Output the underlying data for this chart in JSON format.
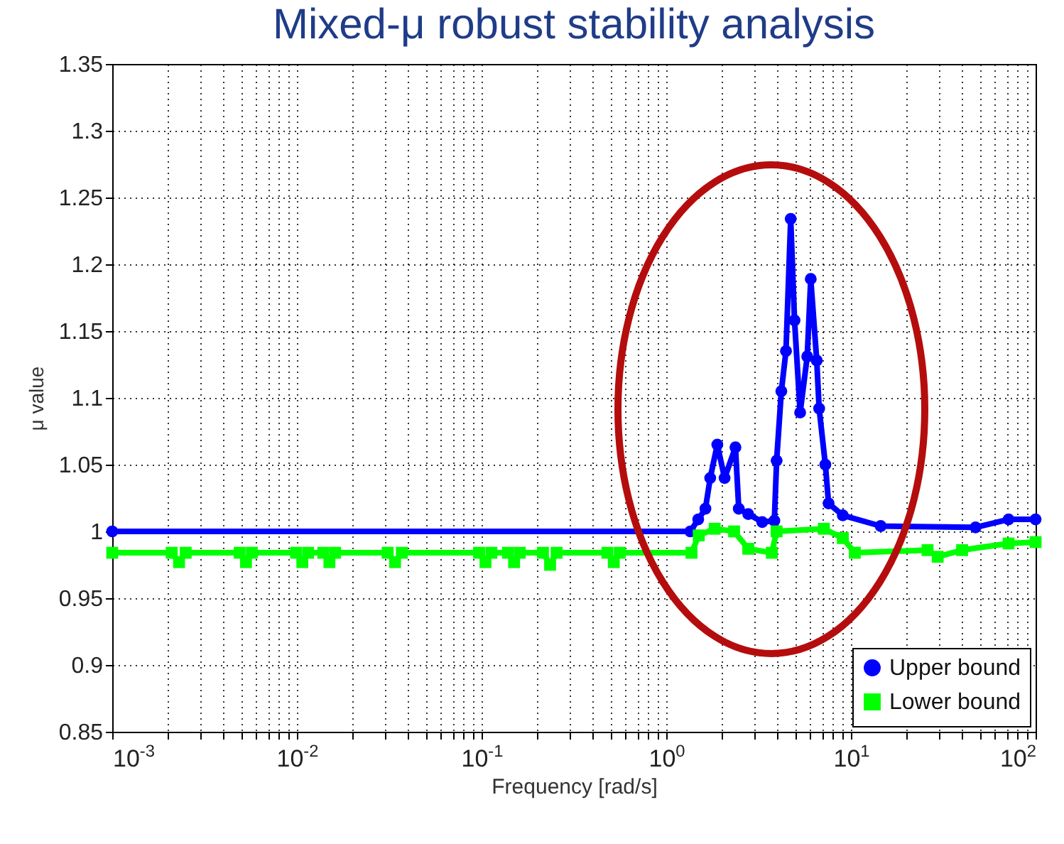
{
  "chart_data": {
    "type": "line",
    "title": "Mixed-μ robust stability analysis",
    "xlabel": "Frequency [rad/s]",
    "ylabel": "μ value",
    "log": "x",
    "grid": true,
    "legend": "bottom right",
    "xlim": [
      0.001,
      100
    ],
    "ylim": [
      0.85,
      1.35
    ],
    "xticks": [
      {
        "value": 0.001,
        "label": "10$^{-3}$"
      },
      {
        "value": 0.002,
        "label": null
      },
      {
        "value": 0.003,
        "label": null
      },
      {
        "value": 0.004,
        "label": null
      },
      {
        "value": 0.005,
        "label": null
      },
      {
        "value": 0.006,
        "label": null
      },
      {
        "value": 0.007,
        "label": null
      },
      {
        "value": 0.008,
        "label": null
      },
      {
        "value": 0.009,
        "label": null
      },
      {
        "value": 0.01,
        "label": "10$^{-2}$"
      },
      {
        "value": 0.02,
        "label": null
      },
      {
        "value": 0.03,
        "label": null
      },
      {
        "value": 0.04,
        "label": null
      },
      {
        "value": 0.05,
        "label": null
      },
      {
        "value": 0.06,
        "label": null
      },
      {
        "value": 0.07,
        "label": null
      },
      {
        "value": 0.08,
        "label": null
      },
      {
        "value": 0.09,
        "label": null
      },
      {
        "value": 0.1,
        "label": "10$^{-1}$"
      },
      {
        "value": 0.2,
        "label": null
      },
      {
        "value": 0.3,
        "label": null
      },
      {
        "value": 0.4,
        "label": null
      },
      {
        "value": 0.5,
        "label": null
      },
      {
        "value": 0.6,
        "label": null
      },
      {
        "value": 0.7,
        "label": null
      },
      {
        "value": 0.8,
        "label": null
      },
      {
        "value": 0.9,
        "label": null
      },
      {
        "value": 1,
        "label": "10$^{0}$"
      },
      {
        "value": 2,
        "label": null
      },
      {
        "value": 3,
        "label": null
      },
      {
        "value": 4,
        "label": null
      },
      {
        "value": 5,
        "label": null
      },
      {
        "value": 6,
        "label": null
      },
      {
        "value": 7,
        "label": null
      },
      {
        "value": 8,
        "label": null
      },
      {
        "value": 9,
        "label": null
      },
      {
        "value": 10,
        "label": "10$^{1}$"
      },
      {
        "value": 20,
        "label": null
      },
      {
        "value": 30,
        "label": null
      },
      {
        "value": 40,
        "label": null
      },
      {
        "value": 50,
        "label": null
      },
      {
        "value": 60,
        "label": null
      },
      {
        "value": 70,
        "label": null
      },
      {
        "value": 80,
        "label": null
      },
      {
        "value": 90,
        "label": null
      },
      {
        "value": 100,
        "label": "10$^{2}$"
      }
    ],
    "yticks": [
      0.85,
      0.9,
      0.95,
      1,
      1.05,
      1.1,
      1.15,
      1.2,
      1.25,
      1.3,
      1.35
    ],
    "marker": "circle",
    "series": [
      {
        "name": "Upper bound",
        "color": "#0000ff",
        "marker": "circle",
        "x": [
          0.001,
          1.35,
          1.49,
          1.63,
          1.73,
          1.89,
          2.07,
          2.37,
          2.47,
          2.78,
          3.31,
          3.85,
          3.96,
          4.2,
          4.45,
          4.72,
          4.95,
          5.31,
          5.8,
          6.06,
          6.53,
          6.73,
          7.27,
          7.57,
          9.04,
          14.5,
          47.3,
          71.4,
          100
        ],
        "values": [
          1.0,
          1.0,
          1.009,
          1.017,
          1.04,
          1.065,
          1.04,
          1.063,
          1.017,
          1.013,
          1.007,
          1.008,
          1.053,
          1.105,
          1.135,
          1.234,
          1.158,
          1.089,
          1.131,
          1.189,
          1.128,
          1.092,
          1.05,
          1.021,
          1.012,
          1.004,
          1.003,
          1.009,
          1.009
        ]
      },
      {
        "name": "Lower bound",
        "color": "#00ff00",
        "marker": "square",
        "x": [
          0.001,
          0.0021,
          0.0023,
          0.0025,
          0.0049,
          0.0053,
          0.0057,
          0.0099,
          0.0107,
          0.0115,
          0.0139,
          0.015,
          0.0161,
          0.031,
          0.034,
          0.037,
          0.097,
          0.105,
          0.113,
          0.139,
          0.15,
          0.161,
          0.215,
          0.235,
          0.255,
          0.48,
          0.52,
          0.56,
          1.37,
          1.5,
          1.83,
          2.33,
          2.78,
          3.73,
          3.96,
          7.14,
          9.04,
          10.5,
          26,
          29.5,
          40,
          71.4,
          100
        ],
        "values": [
          0.984,
          0.984,
          0.977,
          0.984,
          0.984,
          0.977,
          0.984,
          0.984,
          0.977,
          0.984,
          0.984,
          0.977,
          0.984,
          0.984,
          0.977,
          0.984,
          0.984,
          0.977,
          0.984,
          0.984,
          0.977,
          0.984,
          0.984,
          0.975,
          0.984,
          0.984,
          0.977,
          0.984,
          0.984,
          0.997,
          1.002,
          1.0,
          0.987,
          0.984,
          1.0,
          1.002,
          0.995,
          0.984,
          0.986,
          0.981,
          0.986,
          0.991,
          0.992
        ]
      }
    ]
  }
}
